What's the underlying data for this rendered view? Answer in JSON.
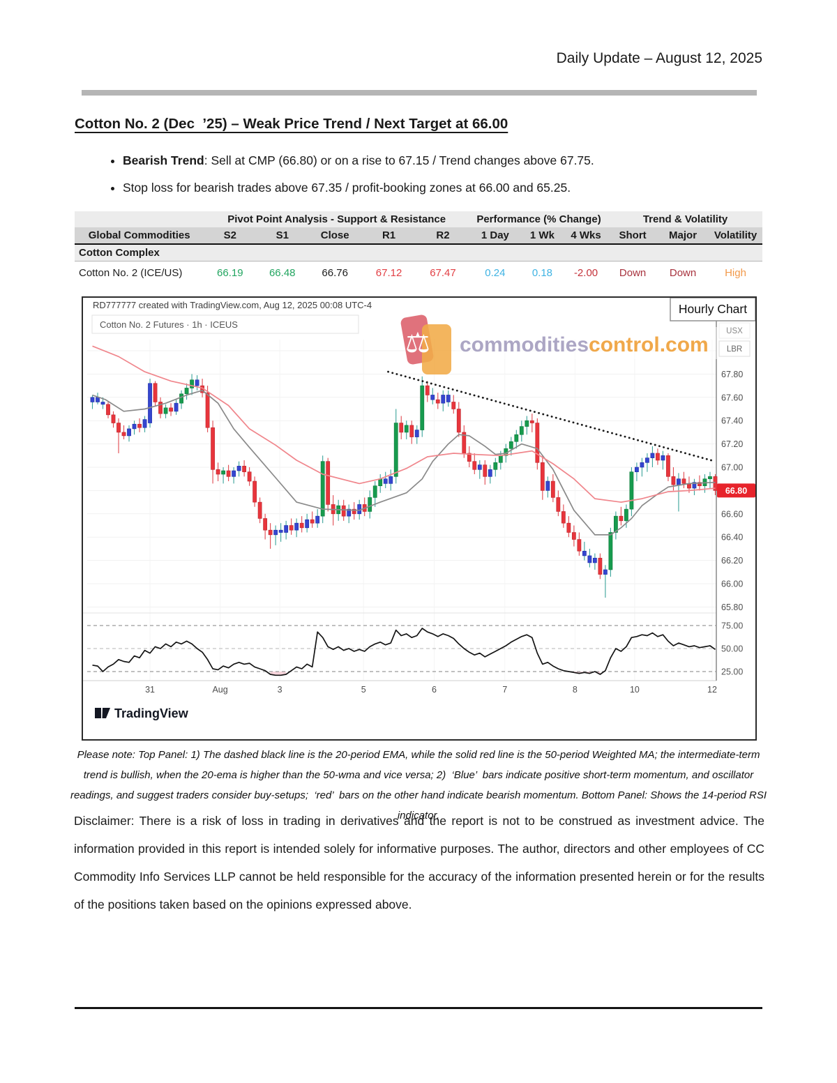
{
  "header": {
    "right_text": "Daily Update – August 12, 2025"
  },
  "title": "Cotton No. 2 (Dec  ’25) – Weak Price Trend / Next Target at 66.00",
  "bullets": [
    {
      "lead": "Bearish Trend",
      "text": ": Sell at CMP (66.80) or on a rise to 67.15 / Trend changes above 67.75."
    },
    {
      "lead": "",
      "text": "Stop loss for bearish trades above 67.35 / profit-booking zones at 66.00 and 65.25."
    }
  ],
  "table": {
    "group_headers": [
      {
        "label": "",
        "span": 1
      },
      {
        "label": "Pivot Point Analysis - Support & Resistance",
        "span": 5
      },
      {
        "label": "Performance (% Change)",
        "span": 3
      },
      {
        "label": "Trend & Volatility",
        "span": 3
      }
    ],
    "columns": [
      "Global Commodities",
      "S2",
      "S1",
      "Close",
      "R1",
      "R2",
      "1 Day",
      "1 Wk",
      "4 Wks",
      "Short",
      "Major",
      "Volatility"
    ],
    "section": "Cotton Complex",
    "rows": [
      {
        "name": "Cotton No. 2 (ICE/US)",
        "cells": [
          {
            "v": "66.19",
            "c": "green"
          },
          {
            "v": "66.48",
            "c": "green"
          },
          {
            "v": "66.76",
            "c": "black"
          },
          {
            "v": "67.12",
            "c": "red"
          },
          {
            "v": "67.47",
            "c": "red"
          },
          {
            "v": "0.24",
            "c": "blue"
          },
          {
            "v": "0.18",
            "c": "blue"
          },
          {
            "v": "-2.00",
            "c": "darkred"
          },
          {
            "v": "Down",
            "c": "brick"
          },
          {
            "v": "Down",
            "c": "brick"
          },
          {
            "v": "High",
            "c": "orange"
          }
        ]
      }
    ]
  },
  "chart_data": {
    "type": "candlestick+rsi",
    "header_note": "RD777777 created with TradingView.com, Aug 12, 2025 00:08 UTC-4",
    "symbol_label": "Cotton No. 2 Futures · 1h · ICEUS",
    "overlay_label": "Hourly Chart",
    "axis_badges": [
      "USX",
      "LBR"
    ],
    "last_price": "66.80",
    "footer_logo": "TradingView",
    "watermark": {
      "part1": "commodities",
      "part2": "control.com"
    },
    "price_axis": {
      "min": 65.8,
      "max": 68.0,
      "step": 0.2
    },
    "rsi_axis": {
      "levels": [
        75,
        50,
        25
      ],
      "labels": [
        "75.00",
        "50.00",
        "25.00"
      ]
    },
    "x_labels": [
      {
        "label": "31",
        "i": 11
      },
      {
        "label": "Aug",
        "i": 24.4
      },
      {
        "label": "3",
        "i": 35.8
      },
      {
        "label": "5",
        "i": 51.8
      },
      {
        "label": "6",
        "i": 65.3
      },
      {
        "label": "7",
        "i": 78.8
      },
      {
        "label": "8",
        "i": 92.2
      },
      {
        "label": "10",
        "i": 103.6
      },
      {
        "label": "12",
        "i": 118.4
      }
    ],
    "trendline_dotted": {
      "from": [
        56.5,
        67.82
      ],
      "to": [
        119,
        67.05
      ]
    },
    "ema20_gray": [
      [
        0,
        67.62
      ],
      [
        2.5,
        67.58
      ],
      [
        6,
        67.48
      ],
      [
        10,
        67.5
      ],
      [
        14,
        67.55
      ],
      [
        18,
        67.62
      ],
      [
        21,
        67.66
      ],
      [
        24,
        67.55
      ],
      [
        27,
        67.33
      ],
      [
        30,
        67.17
      ],
      [
        35,
        66.91
      ],
      [
        39,
        66.7
      ],
      [
        44,
        66.64
      ],
      [
        51,
        66.63
      ],
      [
        55,
        66.7
      ],
      [
        60,
        66.78
      ],
      [
        63,
        66.9
      ],
      [
        65,
        67.05
      ],
      [
        68,
        67.2
      ],
      [
        70,
        67.28
      ],
      [
        72,
        67.27
      ],
      [
        75,
        67.18
      ],
      [
        77,
        67.11
      ],
      [
        79,
        67.12
      ],
      [
        82,
        67.2
      ],
      [
        85,
        67.16
      ],
      [
        88,
        66.98
      ],
      [
        92,
        66.63
      ],
      [
        96,
        66.42
      ],
      [
        99,
        66.42
      ],
      [
        101,
        66.48
      ],
      [
        103,
        66.56
      ],
      [
        105,
        66.67
      ],
      [
        108,
        66.77
      ],
      [
        110,
        66.83
      ],
      [
        114,
        66.86
      ],
      [
        119,
        66.87
      ]
    ],
    "wma50_red": [
      [
        0,
        68.04
      ],
      [
        5,
        67.95
      ],
      [
        10,
        67.82
      ],
      [
        15,
        67.74
      ],
      [
        21,
        67.68
      ],
      [
        26,
        67.53
      ],
      [
        30,
        67.33
      ],
      [
        35,
        67.19
      ],
      [
        39,
        67.06
      ],
      [
        44,
        66.94
      ],
      [
        51,
        66.86
      ],
      [
        55,
        66.9
      ],
      [
        60,
        66.99
      ],
      [
        64,
        67.09
      ],
      [
        69,
        67.12
      ],
      [
        73,
        67.11
      ],
      [
        78,
        67.1
      ],
      [
        81,
        67.12
      ],
      [
        84,
        67.14
      ],
      [
        88,
        67.03
      ],
      [
        92,
        66.9
      ],
      [
        96,
        66.73
      ],
      [
        101,
        66.7
      ],
      [
        105,
        66.73
      ],
      [
        110,
        66.79
      ],
      [
        114,
        66.8
      ],
      [
        119,
        66.82
      ]
    ],
    "candles": [
      [
        67.56,
        67.62,
        67.5,
        67.6,
        "b"
      ],
      [
        67.6,
        67.64,
        67.54,
        67.56,
        "b"
      ],
      [
        67.56,
        67.6,
        67.5,
        67.54,
        "b"
      ],
      [
        67.54,
        67.56,
        67.42,
        67.45,
        "r"
      ],
      [
        67.45,
        67.48,
        67.34,
        67.38,
        "r"
      ],
      [
        67.38,
        67.42,
        67.12,
        67.3,
        "r"
      ],
      [
        67.3,
        67.36,
        67.24,
        67.27,
        "r"
      ],
      [
        67.27,
        67.36,
        67.22,
        67.33,
        "b"
      ],
      [
        67.33,
        67.4,
        67.28,
        67.37,
        "b"
      ],
      [
        67.37,
        67.42,
        67.3,
        67.34,
        "r"
      ],
      [
        67.34,
        67.44,
        67.3,
        67.41,
        "b"
      ],
      [
        67.38,
        67.76,
        67.34,
        67.72,
        "b"
      ],
      [
        67.72,
        67.74,
        67.52,
        67.56,
        "r"
      ],
      [
        67.56,
        67.6,
        67.42,
        67.46,
        "r"
      ],
      [
        67.46,
        67.54,
        67.42,
        67.51,
        "g"
      ],
      [
        67.51,
        67.55,
        67.44,
        67.48,
        "r"
      ],
      [
        67.48,
        67.58,
        67.45,
        67.55,
        "b"
      ],
      [
        67.55,
        67.66,
        67.5,
        67.63,
        "g"
      ],
      [
        67.63,
        67.72,
        67.58,
        67.68,
        "g"
      ],
      [
        67.68,
        67.8,
        67.62,
        67.75,
        "g"
      ],
      [
        67.75,
        67.79,
        67.66,
        67.7,
        "b"
      ],
      [
        67.7,
        67.76,
        67.6,
        67.64,
        "r"
      ],
      [
        67.64,
        67.7,
        67.3,
        67.34,
        "r"
      ],
      [
        67.34,
        67.4,
        66.86,
        66.98,
        "r"
      ],
      [
        66.98,
        67.04,
        66.88,
        66.94,
        "r"
      ],
      [
        66.94,
        67.0,
        66.86,
        66.97,
        "g"
      ],
      [
        66.97,
        67.02,
        66.88,
        66.92,
        "r"
      ],
      [
        66.92,
        67.0,
        66.86,
        66.97,
        "b"
      ],
      [
        66.97,
        67.05,
        66.92,
        67.01,
        "b"
      ],
      [
        67.01,
        67.06,
        66.92,
        66.96,
        "r"
      ],
      [
        66.96,
        67.0,
        66.84,
        66.88,
        "r"
      ],
      [
        66.88,
        66.92,
        66.66,
        66.7,
        "r"
      ],
      [
        66.7,
        66.74,
        66.52,
        66.56,
        "r"
      ],
      [
        66.56,
        66.6,
        66.38,
        66.46,
        "r"
      ],
      [
        66.46,
        66.52,
        66.3,
        66.42,
        "r"
      ],
      [
        66.42,
        66.5,
        66.33,
        66.46,
        "b"
      ],
      [
        66.46,
        66.52,
        66.36,
        66.44,
        "b"
      ],
      [
        66.44,
        66.54,
        66.38,
        66.5,
        "b"
      ],
      [
        66.5,
        66.56,
        66.42,
        66.46,
        "r"
      ],
      [
        66.46,
        66.56,
        66.4,
        66.52,
        "b"
      ],
      [
        66.52,
        66.58,
        66.44,
        66.48,
        "r"
      ],
      [
        66.48,
        66.6,
        66.44,
        66.55,
        "b"
      ],
      [
        66.55,
        66.62,
        66.48,
        66.52,
        "r"
      ],
      [
        66.52,
        66.64,
        66.48,
        66.58,
        "b"
      ],
      [
        66.58,
        67.1,
        66.52,
        67.05,
        "g"
      ],
      [
        67.05,
        67.08,
        66.62,
        66.68,
        "r"
      ],
      [
        66.68,
        66.76,
        66.5,
        66.6,
        "r"
      ],
      [
        66.6,
        66.72,
        66.54,
        66.67,
        "g"
      ],
      [
        66.67,
        66.72,
        66.54,
        66.58,
        "r"
      ],
      [
        66.58,
        66.68,
        66.52,
        66.64,
        "b"
      ],
      [
        66.64,
        66.7,
        66.55,
        66.6,
        "r"
      ],
      [
        66.6,
        66.72,
        66.55,
        66.68,
        "b"
      ],
      [
        66.68,
        66.74,
        66.58,
        66.62,
        "r"
      ],
      [
        66.62,
        66.8,
        66.56,
        66.74,
        "g"
      ],
      [
        66.74,
        66.88,
        66.66,
        66.84,
        "g"
      ],
      [
        66.84,
        66.94,
        66.78,
        66.9,
        "g"
      ],
      [
        66.9,
        66.96,
        66.82,
        66.86,
        "b"
      ],
      [
        66.86,
        66.98,
        66.8,
        66.92,
        "b"
      ],
      [
        66.92,
        67.5,
        66.86,
        67.38,
        "g"
      ],
      [
        67.38,
        67.44,
        67.24,
        67.3,
        "r"
      ],
      [
        67.3,
        67.4,
        67.24,
        67.36,
        "g"
      ],
      [
        67.36,
        67.4,
        67.2,
        67.26,
        "r"
      ],
      [
        67.26,
        67.36,
        67.2,
        67.32,
        "b"
      ],
      [
        67.32,
        67.78,
        67.26,
        67.7,
        "g"
      ],
      [
        67.7,
        67.74,
        67.56,
        67.62,
        "r"
      ],
      [
        67.62,
        67.68,
        67.54,
        67.58,
        "b"
      ],
      [
        67.58,
        67.64,
        67.5,
        67.55,
        "r"
      ],
      [
        67.55,
        67.66,
        67.48,
        67.62,
        "b"
      ],
      [
        67.62,
        67.66,
        67.52,
        67.56,
        "b"
      ],
      [
        67.56,
        67.62,
        67.46,
        67.5,
        "r"
      ],
      [
        67.5,
        67.56,
        67.26,
        67.3,
        "r"
      ],
      [
        67.3,
        67.36,
        67.08,
        67.12,
        "r"
      ],
      [
        67.12,
        67.18,
        67.0,
        67.05,
        "r"
      ],
      [
        67.05,
        67.12,
        66.94,
        66.98,
        "r"
      ],
      [
        66.98,
        67.06,
        66.9,
        67.02,
        "b"
      ],
      [
        67.02,
        67.06,
        66.85,
        66.92,
        "r"
      ],
      [
        66.92,
        67.02,
        66.86,
        66.98,
        "b"
      ],
      [
        66.98,
        67.08,
        66.92,
        67.04,
        "g"
      ],
      [
        67.04,
        67.14,
        66.98,
        67.1,
        "g"
      ],
      [
        67.1,
        67.2,
        67.04,
        67.16,
        "g"
      ],
      [
        67.16,
        67.26,
        67.1,
        67.22,
        "g"
      ],
      [
        67.22,
        67.32,
        67.16,
        67.28,
        "g"
      ],
      [
        67.28,
        67.4,
        67.22,
        67.35,
        "g"
      ],
      [
        67.35,
        67.44,
        67.28,
        67.4,
        "g"
      ],
      [
        67.4,
        67.46,
        67.3,
        67.38,
        "r"
      ],
      [
        67.38,
        67.42,
        66.98,
        67.04,
        "r"
      ],
      [
        67.04,
        67.1,
        66.72,
        66.8,
        "r"
      ],
      [
        66.8,
        66.92,
        66.74,
        66.88,
        "b"
      ],
      [
        66.88,
        66.94,
        66.7,
        66.74,
        "r"
      ],
      [
        66.74,
        66.8,
        66.58,
        66.62,
        "r"
      ],
      [
        66.62,
        66.68,
        66.48,
        66.52,
        "r"
      ],
      [
        66.52,
        66.58,
        66.4,
        66.44,
        "r"
      ],
      [
        66.44,
        66.5,
        66.32,
        66.38,
        "r"
      ],
      [
        66.38,
        66.44,
        66.24,
        66.28,
        "r"
      ],
      [
        66.28,
        66.36,
        66.2,
        66.24,
        "b"
      ],
      [
        66.24,
        66.3,
        66.14,
        66.18,
        "b"
      ],
      [
        66.18,
        66.26,
        66.12,
        66.22,
        "b"
      ],
      [
        66.22,
        66.26,
        66.04,
        66.08,
        "r"
      ],
      [
        66.08,
        66.16,
        65.88,
        66.12,
        "b"
      ],
      [
        66.12,
        66.48,
        66.06,
        66.44,
        "g"
      ],
      [
        66.44,
        66.62,
        66.38,
        66.58,
        "g"
      ],
      [
        66.58,
        66.66,
        66.5,
        66.54,
        "r"
      ],
      [
        66.54,
        66.68,
        66.48,
        66.64,
        "g"
      ],
      [
        66.64,
        67.0,
        66.58,
        66.96,
        "g"
      ],
      [
        66.96,
        67.04,
        66.88,
        67.0,
        "b"
      ],
      [
        67.0,
        67.08,
        66.92,
        67.04,
        "b"
      ],
      [
        67.04,
        67.12,
        66.96,
        67.08,
        "b"
      ],
      [
        67.08,
        67.18,
        67.0,
        67.12,
        "b"
      ],
      [
        67.12,
        67.16,
        67.02,
        67.06,
        "r"
      ],
      [
        67.06,
        67.14,
        66.98,
        67.1,
        "b"
      ],
      [
        67.1,
        67.12,
        66.88,
        66.92,
        "r"
      ],
      [
        66.92,
        67.0,
        66.8,
        66.85,
        "r"
      ],
      [
        66.85,
        66.95,
        66.62,
        66.9,
        "b"
      ],
      [
        66.9,
        66.96,
        66.82,
        66.86,
        "r"
      ],
      [
        66.86,
        66.92,
        66.78,
        66.82,
        "r"
      ],
      [
        66.82,
        66.9,
        66.76,
        66.87,
        "b"
      ],
      [
        66.87,
        66.93,
        66.8,
        66.84,
        "r"
      ],
      [
        66.84,
        66.94,
        66.78,
        66.9,
        "g"
      ],
      [
        66.9,
        66.96,
        66.82,
        66.92,
        "g"
      ],
      [
        66.92,
        66.94,
        66.76,
        66.8,
        "r"
      ]
    ],
    "rsi_values": [
      32,
      31,
      25,
      30,
      33,
      38,
      36,
      35,
      42,
      40,
      48,
      45,
      52,
      50,
      55,
      52,
      57,
      55,
      58,
      55,
      50,
      46,
      38,
      28,
      27,
      31,
      29,
      33,
      35,
      33,
      34,
      30,
      28,
      26,
      22,
      21,
      21,
      22,
      26,
      30,
      28,
      33,
      30,
      68,
      62,
      52,
      49,
      52,
      48,
      50,
      47,
      49,
      47,
      52,
      55,
      57,
      54,
      56,
      70,
      64,
      66,
      62,
      64,
      72,
      68,
      66,
      63,
      66,
      64,
      61,
      55,
      50,
      46,
      43,
      45,
      41,
      44,
      47,
      50,
      53,
      57,
      60,
      63,
      65,
      62,
      45,
      33,
      35,
      31,
      28,
      26,
      25,
      24,
      23,
      24,
      23,
      25,
      22,
      26,
      40,
      50,
      47,
      52,
      62,
      63,
      65,
      64,
      67,
      63,
      65,
      58,
      53,
      56,
      54,
      52,
      53,
      51,
      52,
      53,
      49
    ],
    "colors": {
      "candle_up_green": "#179b4e",
      "candle_blue": "#3546cf",
      "candle_down_red": "#e8353c",
      "wick_teal": "#3aa39a",
      "wick_red": "#e0484f",
      "ma_gray": "#8a8a8a",
      "ma_red": "#f0868c",
      "rsi_line": "#141414",
      "price_tag_bg": "#e7232b",
      "watermark_text1": "#a59fc0",
      "watermark_text2": "#efa13b"
    }
  },
  "note": "Please note: Top Panel: 1) The dashed black line is the 20-period EMA, while the solid red line is the 50-period Weighted MA; the intermediate-term trend is bullish, when the 20-ema is higher than the 50-wma and vice versa; 2)  ‘Blue’  bars indicate positive short-term momentum, and oscillator readings, and suggest traders consider buy-setups;  ‘red’  bars on the other hand indicate bearish momentum. Bottom Panel: Shows the 14-period RSI indicator.",
  "disclaimer": "Disclaimer: There is a risk of loss in trading in derivatives and the report is not to be construed as investment advice. The information provided in this report is intended solely for informative purposes. The author, directors and other employees of CC Commodity Info Services LLP cannot be held responsible for the accuracy of the information presented herein or for the results of the positions taken based on the opinions expressed above."
}
